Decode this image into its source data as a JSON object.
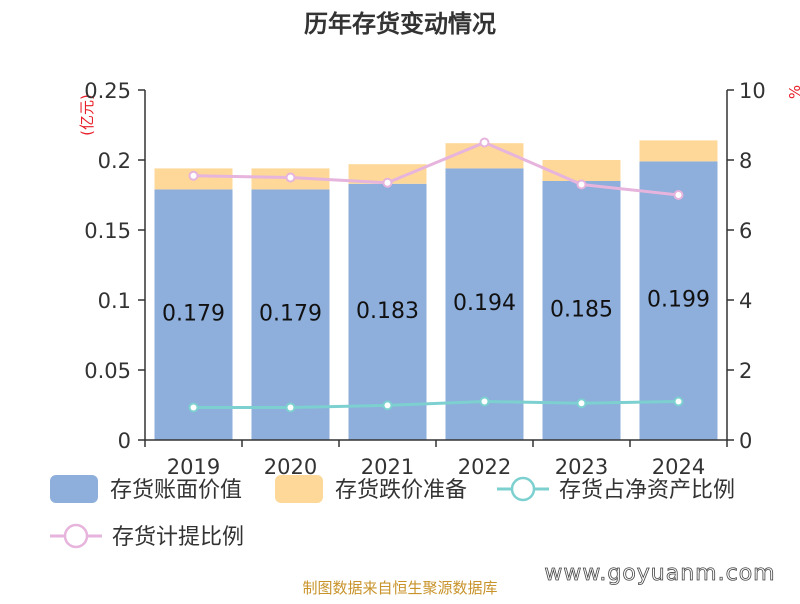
{
  "chart_data": {
    "type": "bar",
    "title": "历年存货变动情况",
    "categories": [
      "2019",
      "2020",
      "2021",
      "2022",
      "2023",
      "2024"
    ],
    "ylabel_left": "(亿元)",
    "ylabel_right": "%",
    "ylim_left": [
      0,
      0.25
    ],
    "ylim_right": [
      0,
      10
    ],
    "yticks_left": [
      "0",
      "0.05",
      "0.1",
      "0.15",
      "0.2",
      "0.25"
    ],
    "yticks_right": [
      "0",
      "2",
      "4",
      "6",
      "8",
      "10"
    ],
    "series": [
      {
        "name": "存货账面价值",
        "kind": "bar",
        "axis": "left",
        "color": "#8eaedb",
        "values": [
          0.179,
          0.179,
          0.183,
          0.194,
          0.185,
          0.199
        ],
        "labels": [
          "0.179",
          "0.179",
          "0.183",
          "0.194",
          "0.185",
          "0.199"
        ]
      },
      {
        "name": "存货跌价准备",
        "kind": "bar-stacked",
        "axis": "left",
        "color": "#fdd898",
        "values": [
          0.015,
          0.015,
          0.014,
          0.018,
          0.015,
          0.015
        ]
      },
      {
        "name": "存货占净资产比例",
        "kind": "line",
        "axis": "right",
        "color": "#7dd0d0",
        "values": [
          0.93,
          0.93,
          0.99,
          1.1,
          1.05,
          1.1
        ]
      },
      {
        "name": "存货计提比例",
        "kind": "line",
        "axis": "right",
        "color": "#e6b4dc",
        "values": [
          7.55,
          7.5,
          7.35,
          8.5,
          7.3,
          7.0
        ]
      }
    ],
    "grid": false,
    "legend_position": "bottom"
  },
  "source_text": "制图数据来自恒生聚源数据库",
  "watermark": "www.goyuanm.com"
}
